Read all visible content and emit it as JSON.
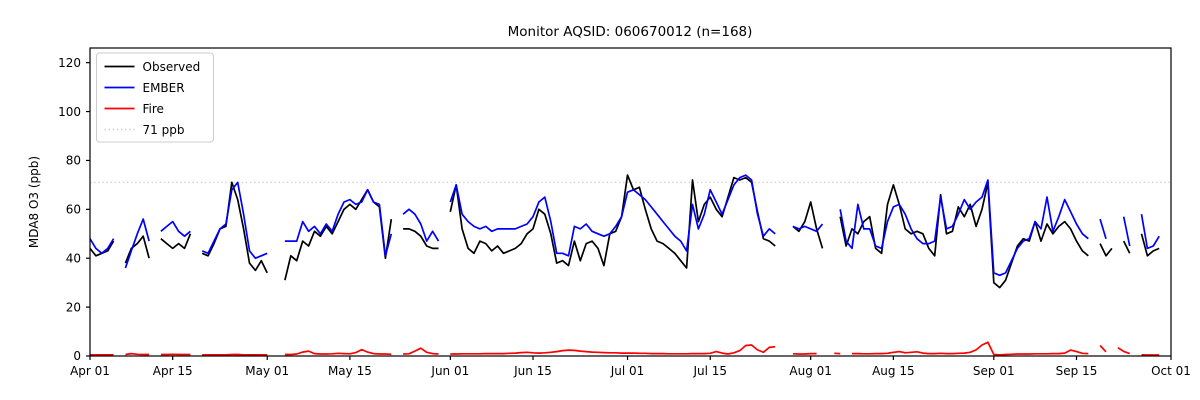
{
  "title": "Monitor AQSID: 060670012 (n=168)",
  "y_axis": {
    "label": "MDA8 O3 (ppb)",
    "ticks": [
      0,
      20,
      40,
      60,
      80,
      100,
      120
    ],
    "range": [
      0,
      126
    ]
  },
  "x_axis": {
    "tick_labels": [
      "Apr 01",
      "Apr 15",
      "May 01",
      "May 15",
      "Jun 01",
      "Jun 15",
      "Jul 01",
      "Jul 15",
      "Aug 01",
      "Aug 15",
      "Sep 01",
      "Sep 15",
      "Oct 01"
    ],
    "tick_days": [
      0,
      14,
      30,
      44,
      61,
      75,
      91,
      105,
      122,
      136,
      153,
      167,
      183
    ],
    "range_days": [
      0,
      183
    ]
  },
  "legend": {
    "entries": [
      {
        "label": "Observed",
        "color": "#000000",
        "dash": "solid"
      },
      {
        "label": "EMBER",
        "color": "#0000ff",
        "dash": "solid"
      },
      {
        "label": "Fire",
        "color": "#ff0000",
        "dash": "solid"
      },
      {
        "label": "71 ppb",
        "color": "#d3d3d3",
        "dash": "dotted"
      }
    ]
  },
  "chart_data": {
    "type": "line",
    "title": "Monitor AQSID: 060670012 (n=168)",
    "xlabel": "",
    "ylabel": "MDA8 O3 (ppb)",
    "x_unit": "daily values, day offset from Apr 01; null = missing day (line gap); values estimated from plot",
    "xlim_days": [
      0,
      183
    ],
    "ylim": [
      0,
      126
    ],
    "grid": false,
    "legend_position": "upper left",
    "threshold_line": {
      "label": "71 ppb",
      "value": 71,
      "style": "dotted",
      "color": "#d3d3d3"
    },
    "series": [
      {
        "name": "Observed",
        "color": "#000000",
        "values": [
          44,
          41,
          42,
          43,
          47,
          null,
          38,
          44,
          46,
          49,
          40,
          null,
          48,
          46,
          44,
          46,
          44,
          50,
          null,
          42,
          41,
          46,
          52,
          53,
          71,
          64,
          52,
          38,
          35,
          39,
          34,
          null,
          null,
          31,
          41,
          39,
          47,
          45,
          51,
          49,
          53,
          50,
          55,
          60,
          62,
          60,
          64,
          68,
          63,
          61,
          40,
          56,
          null,
          52,
          52,
          51,
          49,
          45,
          44,
          44,
          null,
          59,
          70,
          52,
          44,
          42,
          47,
          46,
          43,
          45,
          42,
          43,
          44,
          46,
          50,
          52,
          60,
          58,
          50,
          38,
          39,
          37,
          47,
          39,
          46,
          47,
          44,
          37,
          50,
          51,
          57,
          74,
          68,
          69,
          60,
          52,
          47,
          46,
          44,
          42,
          39,
          36,
          72,
          55,
          62,
          65,
          60,
          57,
          65,
          73,
          72,
          73,
          71,
          59,
          48,
          47,
          45,
          null,
          null,
          53,
          51,
          55,
          63,
          52,
          44,
          null,
          null,
          57,
          45,
          52,
          50,
          55,
          57,
          44,
          42,
          62,
          70,
          62,
          52,
          50,
          51,
          50,
          44,
          41,
          66,
          50,
          51,
          61,
          57,
          62,
          53,
          60,
          71,
          30,
          28,
          31,
          38,
          45,
          48,
          47,
          55,
          47,
          54,
          50,
          53,
          55,
          52,
          47,
          43,
          41,
          null,
          46,
          41,
          44,
          null,
          47,
          42,
          null,
          50,
          41,
          43,
          44,
          null,
          null
        ]
      },
      {
        "name": "EMBER",
        "color": "#0000ff",
        "values": [
          48,
          44,
          42,
          44,
          48,
          null,
          36,
          43,
          50,
          56,
          47,
          null,
          51,
          53,
          55,
          51,
          49,
          51,
          null,
          43,
          42,
          47,
          52,
          54,
          68,
          71,
          58,
          43,
          40,
          41,
          42,
          null,
          null,
          47,
          47,
          47,
          55,
          51,
          53,
          50,
          54,
          51,
          58,
          63,
          64,
          62,
          63,
          68,
          63,
          62,
          41,
          50,
          null,
          58,
          60,
          58,
          54,
          47,
          51,
          47,
          null,
          63,
          70,
          58,
          55,
          53,
          52,
          53,
          51,
          52,
          52,
          52,
          52,
          53,
          54,
          57,
          63,
          65,
          55,
          42,
          42,
          41,
          53,
          52,
          54,
          51,
          50,
          49,
          50,
          53,
          57,
          67,
          68,
          66,
          64,
          61,
          58,
          55,
          52,
          49,
          47,
          43,
          62,
          52,
          58,
          68,
          63,
          58,
          64,
          70,
          73,
          74,
          72,
          58,
          49,
          52,
          50,
          null,
          null,
          53,
          52,
          53,
          52,
          51,
          54,
          null,
          null,
          60,
          47,
          44,
          62,
          52,
          52,
          45,
          44,
          55,
          61,
          62,
          58,
          52,
          48,
          46,
          46,
          47,
          65,
          52,
          53,
          58,
          64,
          60,
          63,
          65,
          72,
          34,
          33,
          34,
          39,
          44,
          47,
          48,
          55,
          52,
          65,
          51,
          57,
          64,
          59,
          54,
          50,
          48,
          null,
          56,
          48,
          null,
          null,
          57,
          45,
          null,
          58,
          44,
          45,
          49,
          null,
          null
        ]
      },
      {
        "name": "Fire",
        "color": "#ff0000",
        "values": [
          0.5,
          0.5,
          0.5,
          0.5,
          0.5,
          null,
          0.6,
          1.0,
          0.7,
          0.6,
          0.6,
          null,
          0.6,
          0.6,
          0.7,
          0.6,
          0.6,
          0.6,
          null,
          0.5,
          0.5,
          0.5,
          0.5,
          0.5,
          0.6,
          0.6,
          0.5,
          0.5,
          0.5,
          0.5,
          0.5,
          null,
          null,
          0.6,
          0.6,
          0.8,
          1.6,
          2.0,
          1.0,
          0.8,
          0.8,
          0.9,
          1.1,
          1.0,
          0.9,
          1.4,
          2.6,
          1.6,
          1.0,
          0.8,
          0.8,
          0.7,
          null,
          0.8,
          0.9,
          2.0,
          3.2,
          1.5,
          1.0,
          0.8,
          null,
          0.8,
          0.8,
          0.9,
          0.9,
          0.9,
          0.9,
          1.0,
          1.0,
          1.0,
          1.0,
          1.1,
          1.2,
          1.4,
          1.5,
          1.3,
          1.2,
          1.3,
          1.5,
          1.8,
          2.2,
          2.4,
          2.3,
          2.0,
          1.8,
          1.6,
          1.5,
          1.4,
          1.3,
          1.3,
          1.2,
          1.2,
          1.2,
          1.1,
          1.1,
          1.0,
          1.0,
          1.0,
          0.9,
          0.9,
          0.9,
          0.9,
          1.0,
          1.0,
          1.0,
          1.1,
          1.8,
          1.2,
          0.8,
          1.3,
          2.2,
          4.3,
          4.5,
          2.5,
          1.5,
          3.5,
          3.8,
          null,
          null,
          0.9,
          0.8,
          0.8,
          1.0,
          1.0,
          null,
          null,
          1.1,
          1.0,
          null,
          1.0,
          1.0,
          0.9,
          0.9,
          1.0,
          1.0,
          1.1,
          1.5,
          1.8,
          1.3,
          1.5,
          1.7,
          1.2,
          1.0,
          1.0,
          1.1,
          1.0,
          1.0,
          1.1,
          1.2,
          1.5,
          2.5,
          4.5,
          5.6,
          0.6,
          0.5,
          0.6,
          0.7,
          0.8,
          0.8,
          0.8,
          0.9,
          0.9,
          0.9,
          1.0,
          1.0,
          1.2,
          2.4,
          1.8,
          1.1,
          1.0,
          null,
          4.3,
          1.7,
          null,
          3.4,
          1.9,
          1.0,
          null,
          0.5,
          0.4,
          0.4,
          0.4,
          null,
          null
        ]
      }
    ]
  }
}
